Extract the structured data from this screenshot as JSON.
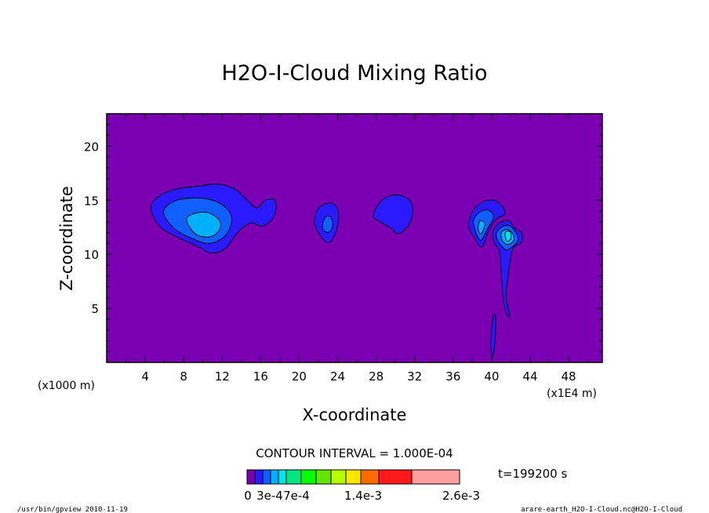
{
  "chart_data": {
    "type": "contour",
    "title": "H2O-I-Cloud Mixing Ratio",
    "xlabel": "X-coordinate",
    "ylabel": "Z-coordinate",
    "x_unit_left": "(x1000 m)",
    "x_unit_right": "(x1E4 m)",
    "xlim": [
      0,
      51.5
    ],
    "ylim": [
      0,
      23
    ],
    "xticks": [
      "4",
      "8",
      "12",
      "16",
      "20",
      "24",
      "28",
      "32",
      "36",
      "40",
      "44",
      "48"
    ],
    "yticks": [
      "5",
      "10",
      "15",
      "20"
    ],
    "contour_interval": "CONTOUR INTERVAL = 1.000E-04",
    "time": "t=199200 s",
    "colorbar": {
      "colors": [
        "#7b00b4",
        "#2a1aff",
        "#1060ff",
        "#00b0ff",
        "#00e6e6",
        "#00e680",
        "#00ff00",
        "#66e600",
        "#b3ff00",
        "#ffe600",
        "#ff6a00",
        "#ff1a1a",
        "#ff9e9e"
      ],
      "labels": [
        "0",
        "3e-4",
        "7e-4",
        "1.4e-3",
        "2.6e-3"
      ]
    },
    "clouds": [
      {
        "name": "cloud-left-large",
        "levels": [
          [
            [
              4.6,
              14.2
            ],
            [
              5.2,
              15.2
            ],
            [
              7,
              16
            ],
            [
              9.5,
              16.3
            ],
            [
              11.6,
              16.5
            ],
            [
              13.4,
              16
            ],
            [
              14.5,
              15.1
            ],
            [
              15.6,
              14.3
            ],
            [
              16.5,
              15
            ],
            [
              17.5,
              15
            ],
            [
              17.4,
              13.5
            ],
            [
              16.2,
              12.6
            ],
            [
              15,
              12.9
            ],
            [
              13.7,
              12.1
            ],
            [
              12.4,
              10.6
            ],
            [
              11,
              10.1
            ],
            [
              9.3,
              10.8
            ],
            [
              7.3,
              11.6
            ],
            [
              5.5,
              12.6
            ]
          ],
          [
            [
              5.9,
              13.9
            ],
            [
              7,
              14.9
            ],
            [
              9,
              15.2
            ],
            [
              11,
              15
            ],
            [
              12.4,
              14.3
            ],
            [
              13,
              13.2
            ],
            [
              12.3,
              11.7
            ],
            [
              10.6,
              11
            ],
            [
              8.8,
              11.5
            ],
            [
              7,
              12.4
            ]
          ],
          [
            [
              8.3,
              13.2
            ],
            [
              9.2,
              13.8
            ],
            [
              10.7,
              13.8
            ],
            [
              11.8,
              13
            ],
            [
              11.6,
              12.1
            ],
            [
              10.6,
              11.6
            ],
            [
              9.2,
              11.9
            ]
          ]
        ]
      },
      {
        "name": "cloud-mid-1",
        "levels": [
          [
            [
              21.6,
              12.9
            ],
            [
              21.9,
              14.1
            ],
            [
              22.8,
              14.7
            ],
            [
              23.7,
              14.6
            ],
            [
              24.1,
              13.6
            ],
            [
              23.8,
              12
            ],
            [
              23.1,
              11.1
            ],
            [
              22.3,
              11.6
            ]
          ],
          [
            [
              22.4,
              12.6
            ],
            [
              22.7,
              13.4
            ],
            [
              23.2,
              13.5
            ],
            [
              23.5,
              12.8
            ],
            [
              23.2,
              12.1
            ],
            [
              22.7,
              12.1
            ]
          ]
        ]
      },
      {
        "name": "cloud-mid-2",
        "levels": [
          [
            [
              27.7,
              13.6
            ],
            [
              28.5,
              14.9
            ],
            [
              29.8,
              15.5
            ],
            [
              31.2,
              15.2
            ],
            [
              31.8,
              14.3
            ],
            [
              31.5,
              12.9
            ],
            [
              30.4,
              11.9
            ],
            [
              29.4,
              12.5
            ],
            [
              28.2,
              13.1
            ]
          ]
        ]
      },
      {
        "name": "cloud-right-a",
        "levels": [
          [
            [
              37.6,
              12.8
            ],
            [
              38.3,
              14.3
            ],
            [
              39.6,
              15
            ],
            [
              40.7,
              14.8
            ],
            [
              41.4,
              13.8
            ],
            [
              40.4,
              13.2
            ],
            [
              39.7,
              12.2
            ],
            [
              39,
              10.7
            ],
            [
              38.3,
              11.4
            ]
          ],
          [
            [
              38.1,
              12.9
            ],
            [
              38.6,
              13.8
            ],
            [
              39.6,
              14.1
            ],
            [
              40.2,
              13.5
            ],
            [
              39.6,
              12.4
            ],
            [
              38.8,
              11.3
            ]
          ],
          [
            [
              38.6,
              12.4
            ],
            [
              38.8,
              13.1
            ],
            [
              39.3,
              12.8
            ],
            [
              38.9,
              11.9
            ]
          ]
        ]
      },
      {
        "name": "cloud-right-b",
        "levels": [
          [
            [
              40.1,
              12
            ],
            [
              40.8,
              12.9
            ],
            [
              41.8,
              13.1
            ],
            [
              42.4,
              12.4
            ],
            [
              43.1,
              12
            ],
            [
              43.1,
              11.1
            ],
            [
              42.2,
              10.5
            ],
            [
              41.7,
              8
            ],
            [
              41.5,
              6
            ],
            [
              41.9,
              4.3
            ],
            [
              41.5,
              4.6
            ],
            [
              41.2,
              6
            ],
            [
              41,
              8.3
            ],
            [
              40.8,
              10.3
            ],
            [
              40.3,
              11
            ]
          ],
          [
            [
              40.5,
              12
            ],
            [
              41.2,
              12.6
            ],
            [
              41.9,
              12.6
            ],
            [
              42.6,
              11.9
            ],
            [
              42.7,
              11.2
            ],
            [
              42,
              10.6
            ],
            [
              41.5,
              10.4
            ],
            [
              41,
              10.8
            ],
            [
              40.6,
              11.3
            ]
          ],
          [
            [
              41,
              12
            ],
            [
              41.6,
              12.3
            ],
            [
              42.2,
              11.9
            ],
            [
              42.3,
              11.3
            ],
            [
              41.7,
              10.9
            ],
            [
              41.1,
              11.3
            ]
          ],
          [
            [
              41.4,
              12
            ],
            [
              41.9,
              12.1
            ],
            [
              42,
              11.5
            ],
            [
              41.6,
              11.2
            ]
          ]
        ]
      },
      {
        "name": "cloud-streak-lower",
        "levels": [
          [
            [
              40.1,
              0.4
            ],
            [
              40.3,
              1.5
            ],
            [
              40.4,
              2.8
            ],
            [
              40.4,
              4.2
            ],
            [
              40.2,
              4.4
            ],
            [
              40,
              3
            ],
            [
              39.9,
              1.5
            ]
          ]
        ]
      }
    ]
  },
  "footer": {
    "left": "/usr/bin/gpview   2010-11-19",
    "right": "arare-earth_H2O-I-Cloud.nc@H2O-I-Cloud"
  }
}
